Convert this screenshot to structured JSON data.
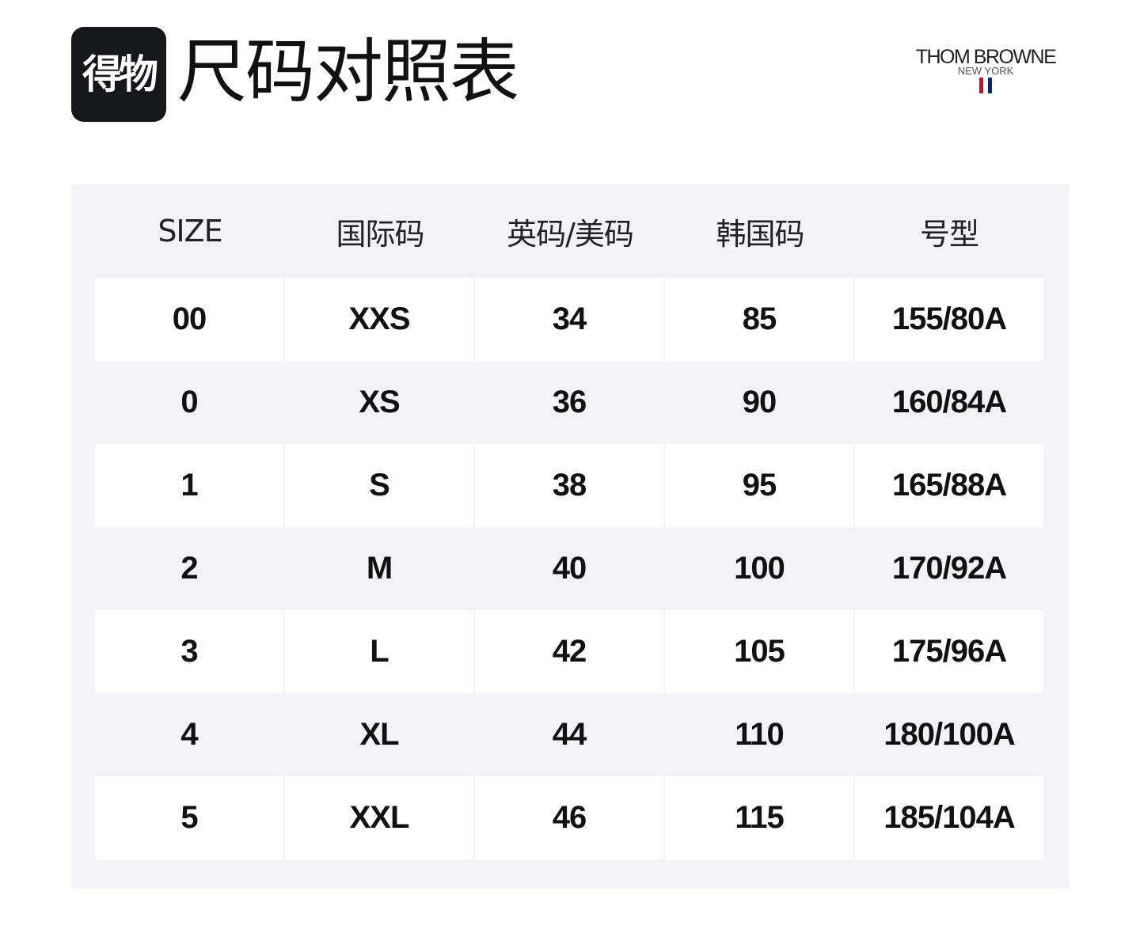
{
  "header": {
    "logo_text": "得物",
    "title": "尺码对照表"
  },
  "brand": {
    "name": "THOM BROWNE",
    "sub": "NEW YORK",
    "stripe_colors": [
      "#c8102e",
      "#0b2a5a"
    ]
  },
  "table": {
    "columns": [
      "SIZE",
      "国际码",
      "英码/美码",
      "韩国码",
      "号型"
    ],
    "rows": [
      [
        "00",
        "XXS",
        "34",
        "85",
        "155/80A"
      ],
      [
        "0",
        "XS",
        "36",
        "90",
        "160/84A"
      ],
      [
        "1",
        "S",
        "38",
        "95",
        "165/88A"
      ],
      [
        "2",
        "M",
        "40",
        "100",
        "170/92A"
      ],
      [
        "3",
        "L",
        "42",
        "105",
        "175/96A"
      ],
      [
        "4",
        "XL",
        "44",
        "110",
        "180/100A"
      ],
      [
        "5",
        "XXL",
        "46",
        "115",
        "185/104A"
      ]
    ]
  },
  "colors": {
    "panel_background": "#f3f3f7",
    "row_highlight": "#ffffff",
    "logo_background": "#16171b"
  }
}
